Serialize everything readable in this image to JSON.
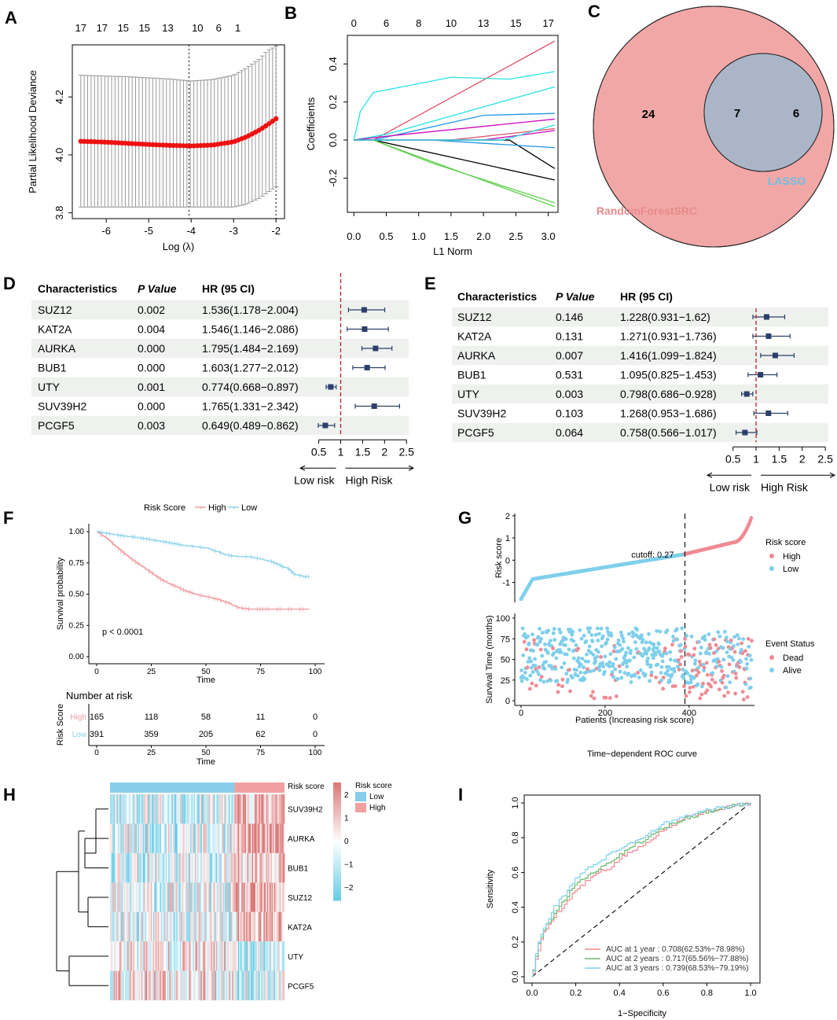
{
  "panels": {
    "A": {
      "label": "A"
    },
    "B": {
      "label": "B"
    },
    "C": {
      "label": "C"
    },
    "D": {
      "label": "D"
    },
    "E": {
      "label": "E"
    },
    "F": {
      "label": "F"
    },
    "G": {
      "label": "G"
    },
    "H": {
      "label": "H"
    },
    "I": {
      "label": "I"
    }
  },
  "chart_data": [
    {
      "id": "A",
      "type": "scatter",
      "title": "",
      "xlabel": "Log (λ)",
      "ylabel": "Partial Likelihood Deviance",
      "xlim": [
        -6.8,
        -1.8
      ],
      "ylim": [
        3.78,
        4.38
      ],
      "xticks": [
        "-6",
        "-5",
        "-4",
        "-3",
        "-2"
      ],
      "yticks": [
        "3.8",
        "4.0",
        "4.2"
      ],
      "top_ticks": [
        "17",
        "17",
        "15",
        "15",
        "13",
        "10",
        "6",
        "1"
      ],
      "top_tick_x": [
        -6.6,
        -6.1,
        -5.6,
        -5.1,
        -4.55,
        -3.85,
        -3.35,
        -2.9
      ],
      "lambda_min": -4.05,
      "lambda_1se": -2.0,
      "x": [
        -6.6,
        -6.0,
        -5.5,
        -5.0,
        -4.5,
        -4.0,
        -3.5,
        -3.0,
        -2.7,
        -2.4,
        -2.2,
        -2.0
      ],
      "y": [
        4.047,
        4.044,
        4.04,
        4.036,
        4.033,
        4.031,
        4.034,
        4.045,
        4.062,
        4.085,
        4.104,
        4.125
      ],
      "err_low": [
        3.82,
        3.82,
        3.82,
        3.82,
        3.82,
        3.82,
        3.82,
        3.82,
        3.83,
        3.85,
        3.87,
        3.89
      ],
      "err_high": [
        4.275,
        4.272,
        4.27,
        4.266,
        4.262,
        4.255,
        4.26,
        4.275,
        4.3,
        4.33,
        4.36,
        4.375
      ]
    },
    {
      "id": "B",
      "type": "line",
      "title": "",
      "xlabel": "L1 Norm",
      "ylabel": "Coefficients",
      "xlim": [
        -0.1,
        3.15
      ],
      "ylim": [
        -0.38,
        0.55
      ],
      "xticks": [
        "0.0",
        "0.5",
        "1.0",
        "1.5",
        "2.0",
        "2.5",
        "3.0"
      ],
      "yticks": [
        "-0.2",
        "0.0",
        "0.2",
        "0.4"
      ],
      "top_ticks": [
        "0",
        "6",
        "8",
        "10",
        "13",
        "15",
        "17"
      ],
      "top_tick_x": [
        0.0,
        0.5,
        1.0,
        1.5,
        2.0,
        2.5,
        3.0
      ],
      "series": [
        {
          "name": "s1",
          "color": "#df536b",
          "x": [
            0,
            0.3,
            3.1
          ],
          "y": [
            0,
            0,
            0.52
          ]
        },
        {
          "name": "s2",
          "color": "#28e2e5",
          "x": [
            0,
            0.1,
            0.3,
            1.5,
            2.4,
            3.1
          ],
          "y": [
            0,
            0.15,
            0.25,
            0.33,
            0.32,
            0.36
          ]
        },
        {
          "name": "s3",
          "color": "#2297e6",
          "x": [
            0,
            0.3,
            2.0,
            3.1
          ],
          "y": [
            0,
            0,
            0.13,
            0.14
          ]
        },
        {
          "name": "s4",
          "color": "#28e2e5",
          "x": [
            0,
            0.5,
            3.1
          ],
          "y": [
            0,
            0.03,
            0.28
          ]
        },
        {
          "name": "s5",
          "color": "#cd0bbc",
          "x": [
            0,
            0.5,
            3.1
          ],
          "y": [
            0,
            0.02,
            0.11
          ]
        },
        {
          "name": "s6",
          "color": "#61d04f",
          "x": [
            0,
            0.3,
            1.2,
            3.1
          ],
          "y": [
            0,
            0,
            -0.12,
            -0.33
          ]
        },
        {
          "name": "s7",
          "color": "#000000",
          "x": [
            0,
            0.3,
            3.1
          ],
          "y": [
            0,
            0,
            -0.21
          ]
        },
        {
          "name": "s8",
          "color": "#61d04f",
          "x": [
            0,
            0.3,
            3.1
          ],
          "y": [
            0,
            0,
            -0.35
          ]
        },
        {
          "name": "s9",
          "color": "#000000",
          "x": [
            0,
            2.4,
            3.1
          ],
          "y": [
            0,
            0,
            -0.15
          ]
        },
        {
          "name": "s10",
          "color": "#2297e6",
          "x": [
            0,
            1.2,
            3.1
          ],
          "y": [
            0,
            0,
            -0.04
          ]
        },
        {
          "name": "s11",
          "color": "#df536b",
          "x": [
            0,
            1.5,
            3.1
          ],
          "y": [
            0,
            0,
            0.06
          ]
        },
        {
          "name": "s12",
          "color": "#cd0bbc",
          "x": [
            0,
            2.0,
            3.1
          ],
          "y": [
            0,
            0,
            0.05
          ]
        },
        {
          "name": "s13",
          "color": "#28e2e5",
          "x": [
            0,
            2.3,
            3.1
          ],
          "y": [
            0,
            0,
            0.08
          ]
        }
      ]
    },
    {
      "id": "C",
      "type": "venn",
      "title": "",
      "sets": [
        {
          "name": "RandomForestSRC",
          "only": "24",
          "color": "#f2a7a7"
        },
        {
          "name": "LASSO",
          "only": "6",
          "color": "#a5d8ef"
        }
      ],
      "intersection": "7"
    },
    {
      "id": "D",
      "type": "forest",
      "title": "",
      "columns": [
        "Characteristics",
        "P Value",
        "HR (95 CI)"
      ],
      "rows": [
        {
          "name": "SUZ12",
          "p": "0.002",
          "hr_text": "1.536(1.178−2.004)",
          "hr": 1.536,
          "lo": 1.178,
          "hi": 2.004
        },
        {
          "name": "KAT2A",
          "p": "0.004",
          "hr_text": "1.546(1.146−2.086)",
          "hr": 1.546,
          "lo": 1.146,
          "hi": 2.086
        },
        {
          "name": "AURKA",
          "p": "0.000",
          "hr_text": "1.795(1.484−2.169)",
          "hr": 1.795,
          "lo": 1.484,
          "hi": 2.169
        },
        {
          "name": "BUB1",
          "p": "0.000",
          "hr_text": "1.603(1.277−2.012)",
          "hr": 1.603,
          "lo": 1.277,
          "hi": 2.012
        },
        {
          "name": "UTY",
          "p": "0.001",
          "hr_text": "0.774(0.668−0.897)",
          "hr": 0.774,
          "lo": 0.668,
          "hi": 0.897
        },
        {
          "name": "SUV39H2",
          "p": "0.000",
          "hr_text": "1.765(1.331−2.342)",
          "hr": 1.765,
          "lo": 1.331,
          "hi": 2.342
        },
        {
          "name": "PCGF5",
          "p": "0.003",
          "hr_text": "0.649(0.489−0.862)",
          "hr": 0.649,
          "lo": 0.489,
          "hi": 0.862
        }
      ],
      "xticks": [
        "0.5",
        "1",
        "1.5",
        "2",
        "2.5"
      ],
      "xlim": [
        0.4,
        2.55
      ],
      "low_label": "Low risk",
      "high_label": "High Risk"
    },
    {
      "id": "E",
      "type": "forest",
      "title": "",
      "columns": [
        "Characteristics",
        "P Value",
        "HR (95 CI)"
      ],
      "rows": [
        {
          "name": "SUZ12",
          "p": "0.146",
          "hr_text": "1.228(0.931−1.62)",
          "hr": 1.228,
          "lo": 0.931,
          "hi": 1.62
        },
        {
          "name": "KAT2A",
          "p": "0.131",
          "hr_text": "1.271(0.931−1.736)",
          "hr": 1.271,
          "lo": 0.931,
          "hi": 1.736
        },
        {
          "name": "AURKA",
          "p": "0.007",
          "hr_text": "1.416(1.099−1.824)",
          "hr": 1.416,
          "lo": 1.099,
          "hi": 1.824
        },
        {
          "name": "BUB1",
          "p": "0.531",
          "hr_text": "1.095(0.825−1.453)",
          "hr": 1.095,
          "lo": 0.825,
          "hi": 1.453
        },
        {
          "name": "UTY",
          "p": "0.003",
          "hr_text": "0.798(0.686−0.928)",
          "hr": 0.798,
          "lo": 0.686,
          "hi": 0.928
        },
        {
          "name": "SUV39H2",
          "p": "0.103",
          "hr_text": "1.268(0.953−1.686)",
          "hr": 1.268,
          "lo": 0.953,
          "hi": 1.686
        },
        {
          "name": "PCGF5",
          "p": "0.064",
          "hr_text": "0.758(0.566−1.017)",
          "hr": 0.758,
          "lo": 0.566,
          "hi": 1.017
        }
      ],
      "xticks": [
        "0.5",
        "1",
        "1.5",
        "2",
        "2.5"
      ],
      "xlim": [
        0.25,
        2.6
      ],
      "low_label": "Low risk",
      "high_label": "High Risk"
    },
    {
      "id": "F",
      "type": "line",
      "title": "",
      "legend_title": "Risk Score",
      "legend": [
        "High",
        "Low"
      ],
      "xlabel": "Time",
      "ylabel": "Survival probability",
      "xlim": [
        0,
        100
      ],
      "ylim": [
        0,
        1
      ],
      "xticks": [
        "0",
        "25",
        "50",
        "75",
        "100"
      ],
      "yticks": [
        "0.00",
        "0.25",
        "0.50",
        "0.75",
        "1.00"
      ],
      "pvalue": "p < 0.0001",
      "series": [
        {
          "name": "High",
          "color": "#f0a0a5",
          "x": [
            0,
            5,
            10,
            15,
            20,
            25,
            30,
            35,
            40,
            45,
            50,
            55,
            60,
            65,
            70,
            80,
            90,
            98
          ],
          "y": [
            1.0,
            0.94,
            0.86,
            0.79,
            0.73,
            0.67,
            0.61,
            0.57,
            0.53,
            0.5,
            0.48,
            0.46,
            0.43,
            0.39,
            0.38,
            0.38,
            0.38,
            0.38
          ]
        },
        {
          "name": "Low",
          "color": "#8fd4ec",
          "x": [
            0,
            10,
            20,
            30,
            40,
            50,
            55,
            60,
            65,
            70,
            75,
            80,
            85,
            88,
            90,
            95,
            98
          ],
          "y": [
            1.0,
            0.97,
            0.95,
            0.92,
            0.89,
            0.87,
            0.84,
            0.81,
            0.8,
            0.8,
            0.78,
            0.76,
            0.72,
            0.7,
            0.66,
            0.64,
            0.64
          ]
        }
      ],
      "risk_table": {
        "title": "Number at risk",
        "ylabel": "Risk Score",
        "times": [
          "0",
          "25",
          "50",
          "75",
          "100"
        ],
        "rows": [
          {
            "group": "High",
            "counts": [
              "165",
              "118",
              "58",
              "11",
              "0"
            ]
          },
          {
            "group": "Low",
            "counts": [
              "391",
              "359",
              "205",
              "62",
              "0"
            ]
          }
        ],
        "xlabel": "Time"
      }
    },
    {
      "id": "G",
      "type": "scatter",
      "title": "",
      "top": {
        "ylabel": "Risk score",
        "yticks": [
          "-1",
          "0",
          "1",
          "2"
        ],
        "ylim": [
          -1.9,
          2.1
        ],
        "cutoff_label": "cutoff: 0.27",
        "cutoff_index": 390,
        "n": 550,
        "legend_title": "Risk score",
        "legend": [
          "High",
          "Low"
        ]
      },
      "bottom": {
        "ylabel": "Survival Time (months)",
        "xlabel": "Patients (Increasing risk score)",
        "yticks": [
          "0",
          "25",
          "50",
          "75",
          "100"
        ],
        "xticks": [
          "0",
          "200",
          "400"
        ],
        "xlim": [
          0,
          550
        ],
        "ylim": [
          0,
          100
        ],
        "legend_title": "Event Status",
        "legend": [
          "Dead",
          "Alive"
        ]
      },
      "colors": {
        "High": "#ef8a94",
        "Low": "#7ecfeb",
        "Dead": "#ef8a94",
        "Alive": "#7ecfeb"
      }
    },
    {
      "id": "H",
      "type": "heatmap",
      "title": "",
      "annotation_label": "Risk score",
      "genes": [
        "SUV39H2",
        "AURKA",
        "BUB1",
        "SUZ12",
        "KAT2A",
        "UTY",
        "PCGF5"
      ],
      "colorbar_ticks": [
        "2",
        "1",
        "0",
        "−1",
        "−2"
      ],
      "legend_title": "Risk score",
      "legend": [
        "Low",
        "High"
      ],
      "low_fraction": 0.71
    },
    {
      "id": "I",
      "type": "line",
      "title": "Time−dependent ROC curve",
      "xlabel": "1−Specificity",
      "ylabel": "Sensitivity",
      "xlim": [
        0,
        1
      ],
      "ylim": [
        0,
        1
      ],
      "xticks": [
        "0.0",
        "0.2",
        "0.4",
        "0.6",
        "0.8",
        "1.0"
      ],
      "yticks": [
        "0.0",
        "0.2",
        "0.4",
        "0.6",
        "0.8",
        "1.0"
      ],
      "series": [
        {
          "name": "AUC at 1 year : 0.708(62.53%−78.98%)",
          "color": "#f08a94",
          "x": [
            0,
            0.02,
            0.05,
            0.1,
            0.15,
            0.2,
            0.25,
            0.3,
            0.35,
            0.4,
            0.45,
            0.5,
            0.55,
            0.6,
            0.65,
            0.7,
            0.8,
            0.9,
            1.0
          ],
          "y": [
            0,
            0.12,
            0.25,
            0.35,
            0.42,
            0.5,
            0.55,
            0.6,
            0.62,
            0.68,
            0.72,
            0.75,
            0.8,
            0.85,
            0.88,
            0.92,
            0.95,
            0.98,
            1.0
          ]
        },
        {
          "name": "AUC at 2 years : 0.717(65.56%−77.88%)",
          "color": "#6fba6f",
          "x": [
            0,
            0.02,
            0.05,
            0.1,
            0.15,
            0.2,
            0.25,
            0.3,
            0.35,
            0.4,
            0.45,
            0.5,
            0.55,
            0.6,
            0.65,
            0.7,
            0.8,
            0.9,
            1.0
          ],
          "y": [
            0,
            0.15,
            0.27,
            0.36,
            0.45,
            0.54,
            0.58,
            0.62,
            0.66,
            0.7,
            0.75,
            0.78,
            0.82,
            0.86,
            0.88,
            0.91,
            0.95,
            0.98,
            1.0
          ]
        },
        {
          "name": "AUC at 3 years : 0.739(68.53%−79.19%)",
          "color": "#7ecfeb",
          "x": [
            0,
            0.02,
            0.05,
            0.1,
            0.15,
            0.2,
            0.25,
            0.3,
            0.35,
            0.4,
            0.45,
            0.5,
            0.55,
            0.6,
            0.65,
            0.7,
            0.8,
            0.9,
            1.0
          ],
          "y": [
            0,
            0.16,
            0.28,
            0.4,
            0.48,
            0.57,
            0.62,
            0.66,
            0.7,
            0.74,
            0.77,
            0.8,
            0.84,
            0.88,
            0.9,
            0.92,
            0.96,
            0.98,
            1.0
          ]
        }
      ]
    }
  ]
}
